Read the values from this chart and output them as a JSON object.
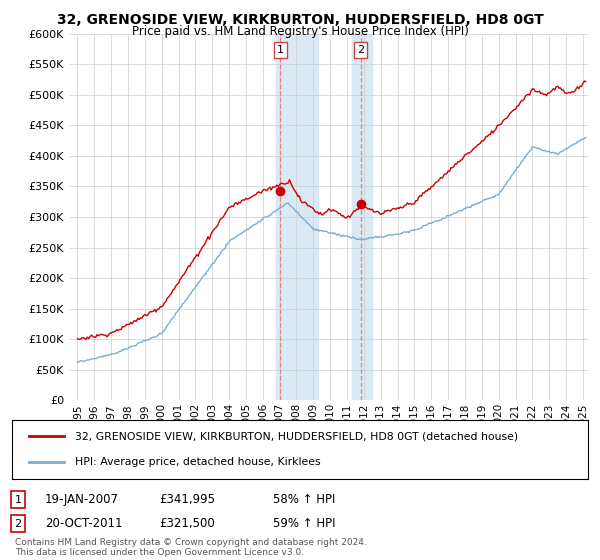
{
  "title": "32, GRENOSIDE VIEW, KIRKBURTON, HUDDERSFIELD, HD8 0GT",
  "subtitle": "Price paid vs. HM Land Registry's House Price Index (HPI)",
  "legend_line1": "32, GRENOSIDE VIEW, KIRKBURTON, HUDDERSFIELD, HD8 0GT (detached house)",
  "legend_line2": "HPI: Average price, detached house, Kirklees",
  "footer": "Contains HM Land Registry data © Crown copyright and database right 2024.\nThis data is licensed under the Open Government Licence v3.0.",
  "transaction1_label": "1",
  "transaction1_date": "19-JAN-2007",
  "transaction1_price": "£341,995",
  "transaction1_hpi": "58% ↑ HPI",
  "transaction2_label": "2",
  "transaction2_date": "20-OCT-2011",
  "transaction2_price": "£321,500",
  "transaction2_hpi": "59% ↑ HPI",
  "red_line_color": "#cc0000",
  "blue_line_color": "#7aaed6",
  "shade_color": "#daeaf5",
  "vline_color": "#e88080",
  "ylim_min": 0,
  "ylim_max": 600000,
  "yticks": [
    0,
    50000,
    100000,
    150000,
    200000,
    250000,
    300000,
    350000,
    400000,
    450000,
    500000,
    550000,
    600000
  ],
  "ytick_labels": [
    "£0",
    "£50K",
    "£100K",
    "£150K",
    "£200K",
    "£250K",
    "£300K",
    "£350K",
    "£400K",
    "£450K",
    "£500K",
    "£550K",
    "£600K"
  ],
  "shade_x1_start": 2006.8,
  "shade_x1_end": 2009.3,
  "shade_x2_start": 2011.3,
  "shade_x2_end": 2012.5,
  "marker1_x": 2007.05,
  "marker1_y": 341995,
  "marker2_x": 2011.8,
  "marker2_y": 321500,
  "xmin": 1994.5,
  "xmax": 2025.3
}
